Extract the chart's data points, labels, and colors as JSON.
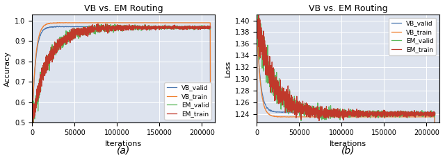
{
  "title": "VB vs. EM Routing",
  "fig_width": 6.4,
  "fig_height": 2.37,
  "dpi": 100,
  "ax1": {
    "xlabel": "Iterations",
    "ylabel": "Accuracy",
    "xlim": [
      0,
      215000
    ],
    "ylim": [
      0.5,
      1.03
    ],
    "yticks": [
      0.5,
      0.6,
      0.7,
      0.8,
      0.9,
      1.0
    ],
    "xticks": [
      0,
      50000,
      100000,
      150000,
      200000
    ],
    "xtick_labels": [
      "0",
      "50000",
      "100000",
      "150000",
      "200000"
    ],
    "caption": "(a)",
    "legend_colors": [
      "#4c78b0",
      "#f08030",
      "#5cb85c",
      "#c0392b"
    ],
    "bg_color": "#dde3ee"
  },
  "ax2": {
    "xlabel": "Iterations",
    "ylabel": "Loss",
    "xlim": [
      0,
      215000
    ],
    "ylim": [
      1.225,
      1.41
    ],
    "yticks": [
      1.24,
      1.26,
      1.28,
      1.3,
      1.32,
      1.34,
      1.36,
      1.38,
      1.4
    ],
    "xticks": [
      0,
      50000,
      100000,
      150000,
      200000
    ],
    "xtick_labels": [
      "0",
      "50000",
      "100000",
      "150000",
      "200000"
    ],
    "caption": "(b)",
    "legend_colors": [
      "#4c78b0",
      "#f08030",
      "#5cb85c",
      "#c0392b"
    ],
    "bg_color": "#dde3ee"
  },
  "colors": {
    "VB_valid": "#4c78b0",
    "VB_train": "#f08030",
    "EM_valid": "#5cb85c",
    "EM_train": "#c0392b"
  }
}
